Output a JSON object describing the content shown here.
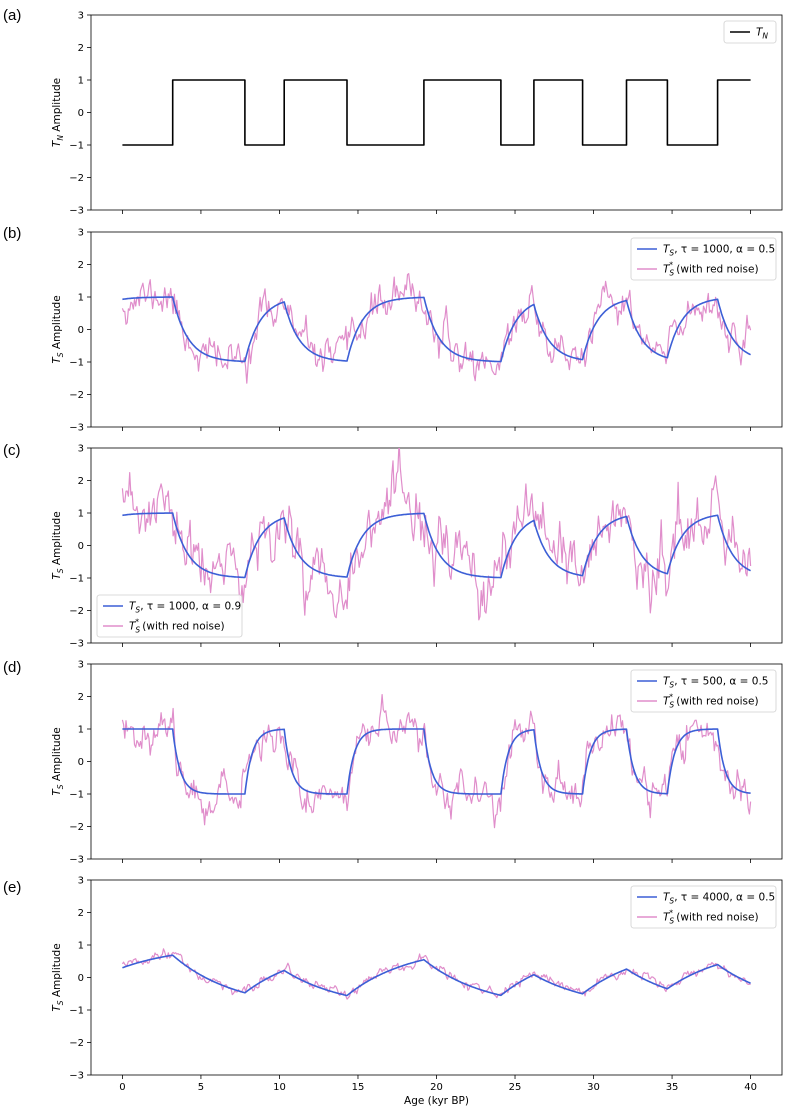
{
  "colors": {
    "TN": "#000000",
    "TS": "#3c5fd6",
    "noisy": "#e08ecb"
  },
  "figure_xlabel": "Age (kyr BP)",
  "chart_data": [
    {
      "panel": "(a)",
      "type": "line",
      "ylabel": [
        "T",
        "N",
        " Amplitude"
      ],
      "xlim": [
        -2,
        42
      ],
      "ylim": [
        -3,
        3
      ],
      "xticks": [
        0,
        5,
        10,
        15,
        20,
        25,
        30,
        35,
        40
      ],
      "yticks": [
        -3,
        -2,
        -1,
        0,
        1,
        2,
        3
      ],
      "show_xtick_labels": false,
      "legend": {
        "position": "top-right"
      },
      "series": [
        {
          "name": [
            "T",
            "N",
            ""
          ],
          "color": "#000000",
          "kind": "step",
          "transitions": [
            3.2,
            7.8,
            10.3,
            14.3,
            19.2,
            24.1,
            26.2,
            29.3,
            32.1,
            34.7,
            37.9
          ],
          "initial_state": -1,
          "start": 0,
          "end": 40
        }
      ]
    },
    {
      "panel": "(b)",
      "type": "line",
      "ylabel": [
        "T",
        "S",
        " Amplitude"
      ],
      "xlim": [
        -2,
        42
      ],
      "ylim": [
        -3,
        3
      ],
      "xticks": [
        0,
        5,
        10,
        15,
        20,
        25,
        30,
        35,
        40
      ],
      "yticks": [
        -3,
        -2,
        -1,
        0,
        1,
        2,
        3
      ],
      "show_xtick_labels": false,
      "legend": {
        "position": "top-right"
      },
      "series": [
        {
          "name": [
            "T",
            "S",
            ", τ = 1000, α = 0.5"
          ],
          "color": "#3c5fd6",
          "tau": 1000,
          "alpha": 0.5
        },
        {
          "name": [
            "T",
            "S",
            "* (with red noise)"
          ],
          "color": "#e08ecb",
          "kind": "noisy",
          "noise_amp": 0.32,
          "seed": 11
        }
      ]
    },
    {
      "panel": "(c)",
      "type": "line",
      "ylabel": [
        "T",
        "S",
        " Amplitude"
      ],
      "xlim": [
        -2,
        42
      ],
      "ylim": [
        -3,
        3
      ],
      "xticks": [
        0,
        5,
        10,
        15,
        20,
        25,
        30,
        35,
        40
      ],
      "yticks": [
        -3,
        -2,
        -1,
        0,
        1,
        2,
        3
      ],
      "show_xtick_labels": false,
      "legend": {
        "position": "bottom-left"
      },
      "series": [
        {
          "name": [
            "T",
            "S",
            ", τ = 1000, α = 0.9"
          ],
          "color": "#3c5fd6",
          "tau": 1000,
          "alpha": 0.9
        },
        {
          "name": [
            "T",
            "S",
            "* (with red noise)"
          ],
          "color": "#e08ecb",
          "kind": "noisy",
          "noise_amp": 0.55,
          "seed": 23
        }
      ]
    },
    {
      "panel": "(d)",
      "type": "line",
      "ylabel": [
        "T",
        "S",
        " Amplitude"
      ],
      "xlim": [
        -2,
        42
      ],
      "ylim": [
        -3,
        3
      ],
      "xticks": [
        0,
        5,
        10,
        15,
        20,
        25,
        30,
        35,
        40
      ],
      "yticks": [
        -3,
        -2,
        -1,
        0,
        1,
        2,
        3
      ],
      "show_xtick_labels": false,
      "legend": {
        "position": "top-right"
      },
      "series": [
        {
          "name": [
            "T",
            "S",
            ", τ = 500, α = 0.5"
          ],
          "color": "#3c5fd6",
          "tau": 500,
          "alpha": 0.5
        },
        {
          "name": [
            "T",
            "S",
            "* (with red noise)"
          ],
          "color": "#e08ecb",
          "kind": "noisy",
          "noise_amp": 0.32,
          "seed": 37
        }
      ]
    },
    {
      "panel": "(e)",
      "type": "line",
      "ylabel": [
        "T",
        "S",
        " Amplitude"
      ],
      "xlim": [
        -2,
        42
      ],
      "ylim": [
        -3,
        3
      ],
      "xticks": [
        0,
        5,
        10,
        15,
        20,
        25,
        30,
        35,
        40
      ],
      "yticks": [
        -3,
        -2,
        -1,
        0,
        1,
        2,
        3
      ],
      "show_xtick_labels": true,
      "xlabel": "Age (kyr BP)",
      "legend": {
        "position": "top-right"
      },
      "series": [
        {
          "name": [
            "T",
            "S",
            ", τ = 4000, α = 0.5"
          ],
          "color": "#3c5fd6",
          "tau": 4000,
          "alpha": 0.5
        },
        {
          "name": [
            "T",
            "S",
            "* (with red noise)"
          ],
          "color": "#e08ecb",
          "kind": "noisy",
          "noise_amp": 0.09,
          "seed": 51
        }
      ]
    }
  ]
}
